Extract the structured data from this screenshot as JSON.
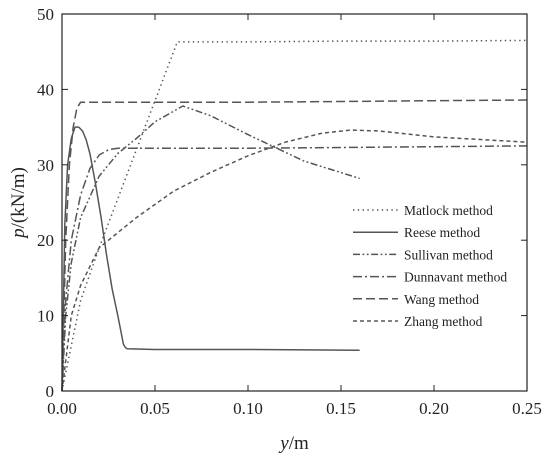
{
  "chart_data": {
    "type": "line",
    "xlabel_var": "y",
    "xlabel_unit": "/m",
    "ylabel_var": "p",
    "ylabel_unit": "/(kN/m)",
    "xlim": [
      0,
      0.25
    ],
    "ylim": [
      0,
      50
    ],
    "xticks": [
      "0.00",
      "0.05",
      "0.10",
      "0.15",
      "0.20",
      "0.25"
    ],
    "yticks": [
      "0",
      "10",
      "20",
      "30",
      "40",
      "50"
    ],
    "grid": false,
    "legend_position": "center-right",
    "line_color": "#555555",
    "series": [
      {
        "name": "Matlock method",
        "dash": "dotted",
        "x": [
          0,
          0.01,
          0.02,
          0.03,
          0.04,
          0.05,
          0.062,
          0.1,
          0.15,
          0.2,
          0.25
        ],
        "y": [
          0,
          12,
          19,
          25.5,
          32,
          38.5,
          46.3,
          46.3,
          46.4,
          46.4,
          46.5
        ]
      },
      {
        "name": "Reese method",
        "dash": "solid",
        "x": [
          0,
          0.0015,
          0.003,
          0.005,
          0.007,
          0.009,
          0.011,
          0.013,
          0.015,
          0.018,
          0.021,
          0.024,
          0.027,
          0.03,
          0.032,
          0.033,
          0.034,
          0.035,
          0.05,
          0.1,
          0.16
        ],
        "y": [
          0,
          22,
          30,
          33.5,
          35,
          35,
          34.5,
          33.3,
          31.5,
          27.5,
          23,
          18,
          13.5,
          10,
          7.5,
          6.2,
          5.8,
          5.6,
          5.5,
          5.5,
          5.4
        ]
      },
      {
        "name": "Sullivan method",
        "dash": "dash-dot-dot",
        "x": [
          0,
          0.002,
          0.005,
          0.01,
          0.02,
          0.03,
          0.04,
          0.05,
          0.065,
          0.08,
          0.1,
          0.13,
          0.16
        ],
        "y": [
          0,
          10,
          17,
          23,
          28.5,
          31.5,
          33.5,
          35.7,
          37.8,
          36.5,
          34,
          30.5,
          28.2
        ]
      },
      {
        "name": "Dunnavant method",
        "dash": "dash-dot",
        "x": [
          0,
          0.002,
          0.005,
          0.01,
          0.015,
          0.02,
          0.025,
          0.03,
          0.05,
          0.1,
          0.15,
          0.2,
          0.25
        ],
        "y": [
          0,
          12,
          20,
          26,
          29.5,
          31.3,
          32,
          32.2,
          32.2,
          32.2,
          32.3,
          32.4,
          32.5
        ]
      },
      {
        "name": "Wang method",
        "dash": "dashed",
        "x": [
          0,
          0.002,
          0.004,
          0.006,
          0.008,
          0.01,
          0.012,
          0.05,
          0.1,
          0.15,
          0.2,
          0.25
        ],
        "y": [
          0,
          20,
          30,
          35,
          37.5,
          38.3,
          38.3,
          38.3,
          38.3,
          38.4,
          38.5,
          38.6
        ]
      },
      {
        "name": "Zhang method",
        "dash": "short-dash",
        "x": [
          0,
          0.005,
          0.01,
          0.02,
          0.04,
          0.06,
          0.08,
          0.1,
          0.12,
          0.14,
          0.155,
          0.17,
          0.2,
          0.25
        ],
        "y": [
          0,
          10,
          14,
          19,
          23,
          26.5,
          29,
          31.2,
          33,
          34.2,
          34.6,
          34.5,
          33.7,
          33
        ]
      }
    ]
  }
}
